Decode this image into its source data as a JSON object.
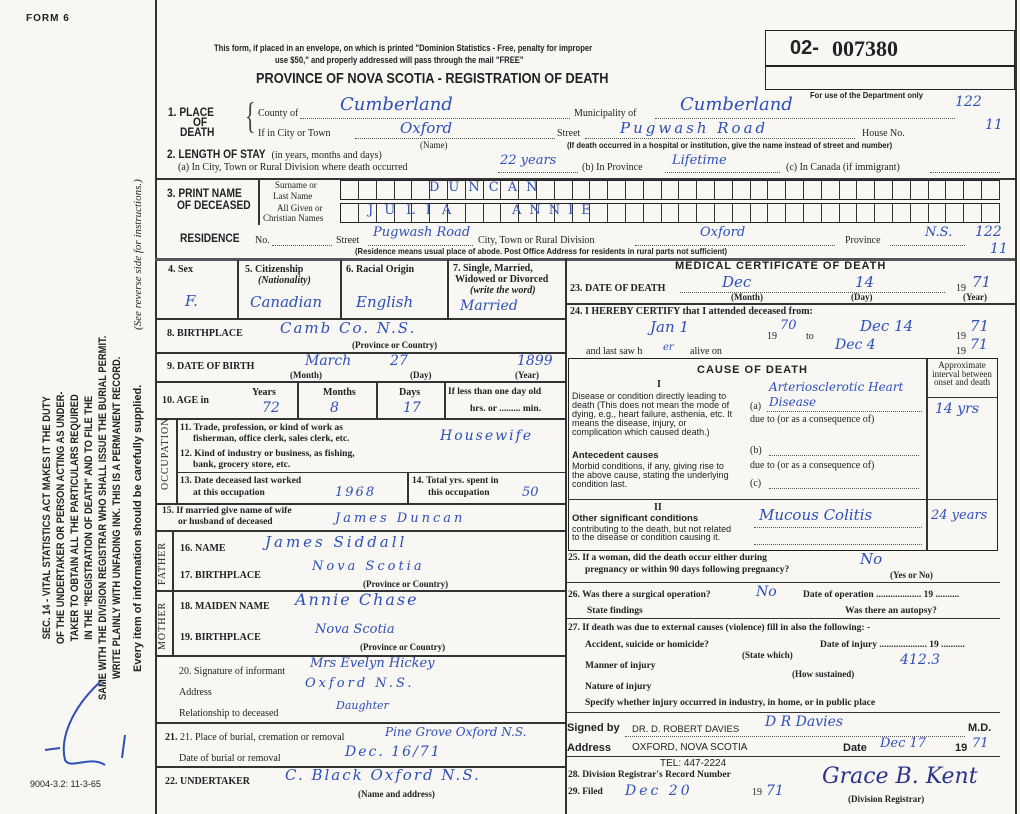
{
  "form_id": "FORM 6",
  "print_code": "9004-3.2: 11-3-65",
  "side_notice": [
    "SEC. 14 - VITAL STATISTICS ACT MAKES IT THE DUTY",
    "OF THE UNDERTAKER OR PERSON ACTING AS UNDER-",
    "TAKER TO OBTAIN ALL THE PARTICULARS REQUIRED",
    "IN THE \"REGISTRATION OF DEATH\" AND TO FILE THE",
    "SAME WITH THE DIVISION REGISTRAR WHO SHALL ISSUE THE BURIAL PERMIT.",
    "WRITE PLAINLY WITH UNFADING INK. THIS IS A PERMANENT RECORD."
  ],
  "side_note2": "Every item of information should be carefully supplied.",
  "side_note3": "(See reverse side for instructions.)",
  "header": {
    "mail_notice_1": "This form, if placed in an envelope, on which is printed \"Dominion Statistics - Free, penalty for improper",
    "mail_notice_2": "use $50,\" and properly addressed will pass through the mail \"FREE\"",
    "title": "PROVINCE OF NOVA SCOTIA - REGISTRATION OF DEATH",
    "reg_prefix": "02-",
    "reg_number": "007380",
    "dept_only": "For use of the Department only",
    "dept_codes": [
      "122",
      "11",
      "122",
      "11"
    ]
  },
  "s1": {
    "label": "1. PLACE",
    "label2": "OF",
    "label3": "DEATH",
    "county_label": "County of",
    "county": "Cumberland",
    "muni_label": "Municipality of",
    "muni": "Cumberland",
    "city_label": "If in City or Town",
    "city": "Oxford",
    "name_note": "(Name)",
    "street_label": "Street",
    "street": "Pugwash Road",
    "house_label": "House No.",
    "hosp_note": "(If death occurred in a hospital or institution, give the name instead of street and number)"
  },
  "s2": {
    "label": "2. LENGTH OF STAY",
    "sub": "(in years, months and days)",
    "a_label": "(a) In City, Town or Rural Division where death occurred",
    "a": "22 years",
    "b_label": "(b) In Province",
    "b": "Lifetime",
    "c_label": "(c) In Canada (if immigrant)"
  },
  "s3": {
    "label": "3. PRINT NAME",
    "label2": "OF DECEASED",
    "surname_label": "Surname or",
    "surname_label2": "Last Name",
    "given_label": "All Given or",
    "given_label2": "Christian Names",
    "surname": "DUNCAN",
    "given1": "JULIA",
    "given2": "ANNIE"
  },
  "residence": {
    "label": "RESIDENCE",
    "no_label": "No.",
    "street_label": "Street",
    "street": "Pugwash Road",
    "city_label": "City, Town or Rural Division",
    "city": "Oxford",
    "prov_label": "Province",
    "prov": "N.S.",
    "note": "(Residence means usual place of abode. Post Office Address for residents in rural parts not sufficient)"
  },
  "left": {
    "sex_label": "4. Sex",
    "sex": "F.",
    "cit_label": "5. Citizenship",
    "cit_sub": "(Nationality)",
    "cit": "Canadian",
    "race_label": "6. Racial Origin",
    "race": "English",
    "marital_label": "7. Single, Married,",
    "marital_label2": "Widowed or Divorced",
    "marital_label3": "(write the word)",
    "marital": "Married",
    "birthplace_label": "8. BIRTHPLACE",
    "birthplace": "Camb Co. N.S.",
    "prov_country": "(Province or Country)",
    "dob_label": "9. DATE OF BIRTH",
    "dob_month": "March",
    "dob_day": "27",
    "dob_year": "1899",
    "month": "(Month)",
    "day": "(Day)",
    "year": "(Year)",
    "age_label": "10. AGE in",
    "years_label": "Years",
    "years": "72",
    "months_label": "Months",
    "months": "8",
    "days_label": "Days",
    "days": "17",
    "lt_label": "If less than one day old",
    "hrs_label": "hrs. or ......... min.",
    "occupation": "OCCUPATION",
    "trade_label": "11. Trade, profession, or kind of work as",
    "trade_label2": "fisherman, office clerk, sales clerk, etc.",
    "trade": "Housewife",
    "industry_label": "12. Kind of industry or business, as fishing,",
    "industry_label2": "bank, grocery store, etc.",
    "lastwork_label": "13. Date deceased last worked",
    "lastwork_label2": "at this occupation",
    "lastwork": "1968",
    "total_label": "14. Total yrs. spent in",
    "total_label2": "this occupation",
    "total": "50",
    "spouse_label": "15. If married give name of wife",
    "spouse_label2": "or husband of deceased",
    "spouse": "James Duncan",
    "father": "FATHER",
    "f_name_label": "16. NAME",
    "f_name": "James Siddall",
    "f_bp_label": "17. BIRTHPLACE",
    "f_bp": "Nova Scotia",
    "mother": "MOTHER",
    "m_name_label": "18. MAIDEN NAME",
    "m_name": "Annie Chase",
    "m_bp_label": "19. BIRTHPLACE",
    "m_bp": "Nova Scotia",
    "inf_label": "20. Signature of informant",
    "inf": "Mrs Evelyn Hickey",
    "addr_label": "Address",
    "addr": "Oxford N.S.",
    "rel_label": "Relationship to deceased",
    "rel": "Daughter",
    "burial_label": "21. Place of burial, cremation or removal",
    "burial": "Pine Grove Oxford N.S.",
    "bdate_label": "Date of burial or removal",
    "bdate": "Dec. 16/71",
    "und_label": "22. UNDERTAKER",
    "und": "C. Black Oxford N.S.",
    "und_note": "(Name and address)"
  },
  "right": {
    "title": "MEDICAL CERTIFICATE OF DEATH",
    "dod_label": "23. DATE OF DEATH",
    "dod_month": "Dec",
    "dod_day": "14",
    "dod_year": "71",
    "nineteen": "19",
    "cert_label": "24. I HEREBY CERTIFY that I attended deceased from:",
    "from": "Jan 1",
    "from_year": "70",
    "to_label": "to",
    "to": "Dec 14",
    "to_year": "71",
    "lastsaw_label": "and last saw h",
    "lastsaw_h": "er",
    "alive_label": "alive on",
    "alive": "Dec 4",
    "alive_year": "71",
    "cod_title": "CAUSE OF DEATH",
    "interval_label": "Approximate interval between onset and death",
    "roman1": "I",
    "roman2": "II",
    "direct_label": "Disease or condition directly leading to death (This does not mean the mode of dying, e.g., heart failure, asthenia, etc. It means the disease, injury, or complication which caused death.)",
    "a_label": "(a)",
    "a": "Arteriosclerotic Heart Disease",
    "a_interval": "14 yrs",
    "due_label": "due to (or as a consequence of)",
    "ante_title": "Antecedent causes",
    "ante_label": "Morbid conditions, if any, giving rise to the above cause, stating the underlying condition last.",
    "b_label": "(b)",
    "c_label": "(c)",
    "other_title": "Other significant conditions",
    "other_label": "contributing to the death, but not related to the disease or condition causing it.",
    "other": "Mucous Colitis",
    "other_interval": "24 years",
    "q25": "25. If a woman, did the death occur either during",
    "q25b": "pregnancy or within 90 days following pregnancy?",
    "a25": "No",
    "yesno": "(Yes or No)",
    "q26": "26. Was there a surgical operation?",
    "a26": "No",
    "op_date": "Date of operation ................... 19 ..........",
    "findings": "State findings",
    "autopsy": "Was there an autopsy?",
    "q27": "27. If death was due to external causes (violence) fill in also the following: -",
    "accident": "Accident, suicide or homicide?",
    "state_which": "(State which)",
    "inj_date": "Date of injury .................... 19 ..........",
    "manner": "Manner of injury",
    "code": "412.3",
    "how": "(How sustained)",
    "nature": "Nature of injury",
    "specify": "Specify whether injury occurred in industry, in home, or in public place",
    "signed_label": "Signed by",
    "signed": "DR. D. ROBERT DAVIES",
    "md": "M.D.",
    "signature": "D R Davies",
    "address_label": "Address",
    "address": "OXFORD, NOVA SCOTIA",
    "tel": "TEL: 447-2224",
    "date_label": "Date",
    "date": "Dec 17",
    "date_year": "71",
    "q28": "28. Division Registrar's Record Number",
    "q29": "29. Filed",
    "filed": "Dec 20",
    "filed_year": "71",
    "registrar_sig": "Grace B. Kent",
    "registrar_label": "(Division Registrar)"
  },
  "ink_color": "#2d4fb8"
}
